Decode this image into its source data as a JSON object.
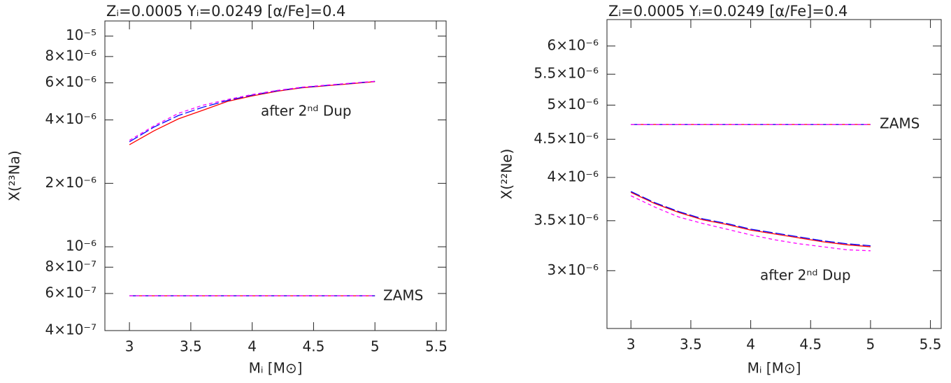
{
  "chart_data": [
    {
      "type": "line",
      "title": "Zᵢ=0.0005 Yᵢ=0.0249 [α/Fe]=0.4",
      "xlabel": "Mᵢ [M⊙]",
      "ylabel": "X(²³Na)",
      "log_y": true,
      "xlim": [
        2.8,
        5.58
      ],
      "ylim": [
        4e-07,
        1.18e-05
      ],
      "xticks": [
        3,
        3.5,
        4,
        4.5,
        5,
        5.5
      ],
      "yticks": [
        {
          "value": 4e-07,
          "label": "4×10⁻⁷"
        },
        {
          "value": 6e-07,
          "label": "6×10⁻⁷"
        },
        {
          "value": 8e-07,
          "label": "8×10⁻⁷"
        },
        {
          "value": 1e-06,
          "label": "10⁻⁶"
        },
        {
          "value": 2e-06,
          "label": "2×10⁻⁶"
        },
        {
          "value": 4e-06,
          "label": "4×10⁻⁶"
        },
        {
          "value": 6e-06,
          "label": "6×10⁻⁶"
        },
        {
          "value": 8e-06,
          "label": "8×10⁻⁶"
        },
        {
          "value": 1e-05,
          "label": "10⁻⁵"
        }
      ],
      "annotations": [
        "after 2ⁿᵈ Dup",
        "ZAMS"
      ],
      "series": [
        {
          "color": "#ff0000",
          "dash": "solid",
          "x": [
            3,
            3.2,
            3.4,
            3.6,
            3.8,
            4,
            4.2,
            4.4,
            4.6,
            4.8,
            5
          ],
          "values": [
            3.05e-06,
            3.55e-06,
            4.05e-06,
            4.45e-06,
            4.9e-06,
            5.2e-06,
            5.47e-06,
            5.68e-06,
            5.81e-06,
            5.94e-06,
            6.08e-06
          ]
        },
        {
          "color": "#0000ff",
          "dash": "long",
          "x": [
            3,
            3.2,
            3.4,
            3.6,
            3.8,
            4,
            4.2,
            4.4,
            4.6,
            4.8,
            5
          ],
          "values": [
            3.15e-06,
            3.7e-06,
            4.2e-06,
            4.6e-06,
            4.95e-06,
            5.25e-06,
            5.5e-06,
            5.7e-06,
            5.83e-06,
            5.96e-06,
            6.1e-06
          ]
        },
        {
          "color": "#ff00ff",
          "dash": "short",
          "x": [
            3,
            3.2,
            3.4,
            3.6,
            3.8,
            4,
            4.2,
            4.4,
            4.6,
            4.8,
            5
          ],
          "values": [
            3.2e-06,
            3.75e-06,
            4.3e-06,
            4.7e-06,
            5e-06,
            5.28e-06,
            5.52e-06,
            5.72e-06,
            5.85e-06,
            5.98e-06,
            6.1e-06
          ]
        },
        {
          "color": "#ff0000",
          "dash": "solid",
          "x": [
            3,
            5
          ],
          "values": [
            5.85e-07,
            5.85e-07
          ]
        },
        {
          "color": "#0000ff",
          "dash": "long",
          "x": [
            3,
            5
          ],
          "values": [
            5.85e-07,
            5.85e-07
          ]
        },
        {
          "color": "#ff00ff",
          "dash": "short",
          "x": [
            3,
            5
          ],
          "values": [
            5.85e-07,
            5.85e-07
          ]
        }
      ]
    },
    {
      "type": "line",
      "title": "Zᵢ=0.0005 Yᵢ=0.0249 [α/Fe]=0.4",
      "xlabel": "Mᵢ [M⊙]",
      "ylabel": "X(²²Ne)",
      "log_y": true,
      "xlim": [
        2.8,
        5.59
      ],
      "ylim": [
        2.51e-06,
        6.51e-06
      ],
      "xticks": [
        3,
        3.5,
        4,
        4.5,
        5,
        5.5
      ],
      "yticks": [
        {
          "value": 3e-06,
          "label": "3×10⁻⁶"
        },
        {
          "value": 3.5e-06,
          "label": "3.5×10⁻⁶"
        },
        {
          "value": 4e-06,
          "label": "4×10⁻⁶"
        },
        {
          "value": 4.5e-06,
          "label": "4.5×10⁻⁶"
        },
        {
          "value": 5e-06,
          "label": "5×10⁻⁶"
        },
        {
          "value": 5.5e-06,
          "label": "5.5×10⁻⁶"
        },
        {
          "value": 6e-06,
          "label": "6×10⁻⁶"
        }
      ],
      "annotations": [
        "after 2ⁿᵈ Dup",
        "ZAMS"
      ],
      "series": [
        {
          "color": "#ff0000",
          "dash": "solid",
          "x": [
            3,
            3.2,
            3.4,
            3.6,
            3.8,
            4,
            4.2,
            4.4,
            4.6,
            4.8,
            5
          ],
          "values": [
            3.82e-06,
            3.69e-06,
            3.59e-06,
            3.51e-06,
            3.46e-06,
            3.4e-06,
            3.36e-06,
            3.32e-06,
            3.28e-06,
            3.25e-06,
            3.23e-06
          ]
        },
        {
          "color": "#0000ff",
          "dash": "long",
          "x": [
            3,
            3.2,
            3.4,
            3.6,
            3.8,
            4,
            4.2,
            4.4,
            4.6,
            4.8,
            5
          ],
          "values": [
            3.83e-06,
            3.7e-06,
            3.6e-06,
            3.52e-06,
            3.47e-06,
            3.41e-06,
            3.37e-06,
            3.33e-06,
            3.29e-06,
            3.26e-06,
            3.24e-06
          ]
        },
        {
          "color": "#ff00ff",
          "dash": "short",
          "x": [
            3,
            3.2,
            3.4,
            3.6,
            3.8,
            4,
            4.2,
            4.4,
            4.6,
            4.8,
            5
          ],
          "values": [
            3.78e-06,
            3.65e-06,
            3.54e-06,
            3.47e-06,
            3.41e-06,
            3.35e-06,
            3.3e-06,
            3.26e-06,
            3.23e-06,
            3.2e-06,
            3.19e-06
          ]
        },
        {
          "color": "#ff0000",
          "dash": "solid",
          "x": [
            3,
            5
          ],
          "values": [
            4.71e-06,
            4.71e-06
          ]
        },
        {
          "color": "#0000ff",
          "dash": "long",
          "x": [
            3,
            5
          ],
          "values": [
            4.71e-06,
            4.71e-06
          ]
        },
        {
          "color": "#ff00ff",
          "dash": "short",
          "x": [
            3,
            5
          ],
          "values": [
            4.71e-06,
            4.71e-06
          ]
        }
      ]
    }
  ]
}
